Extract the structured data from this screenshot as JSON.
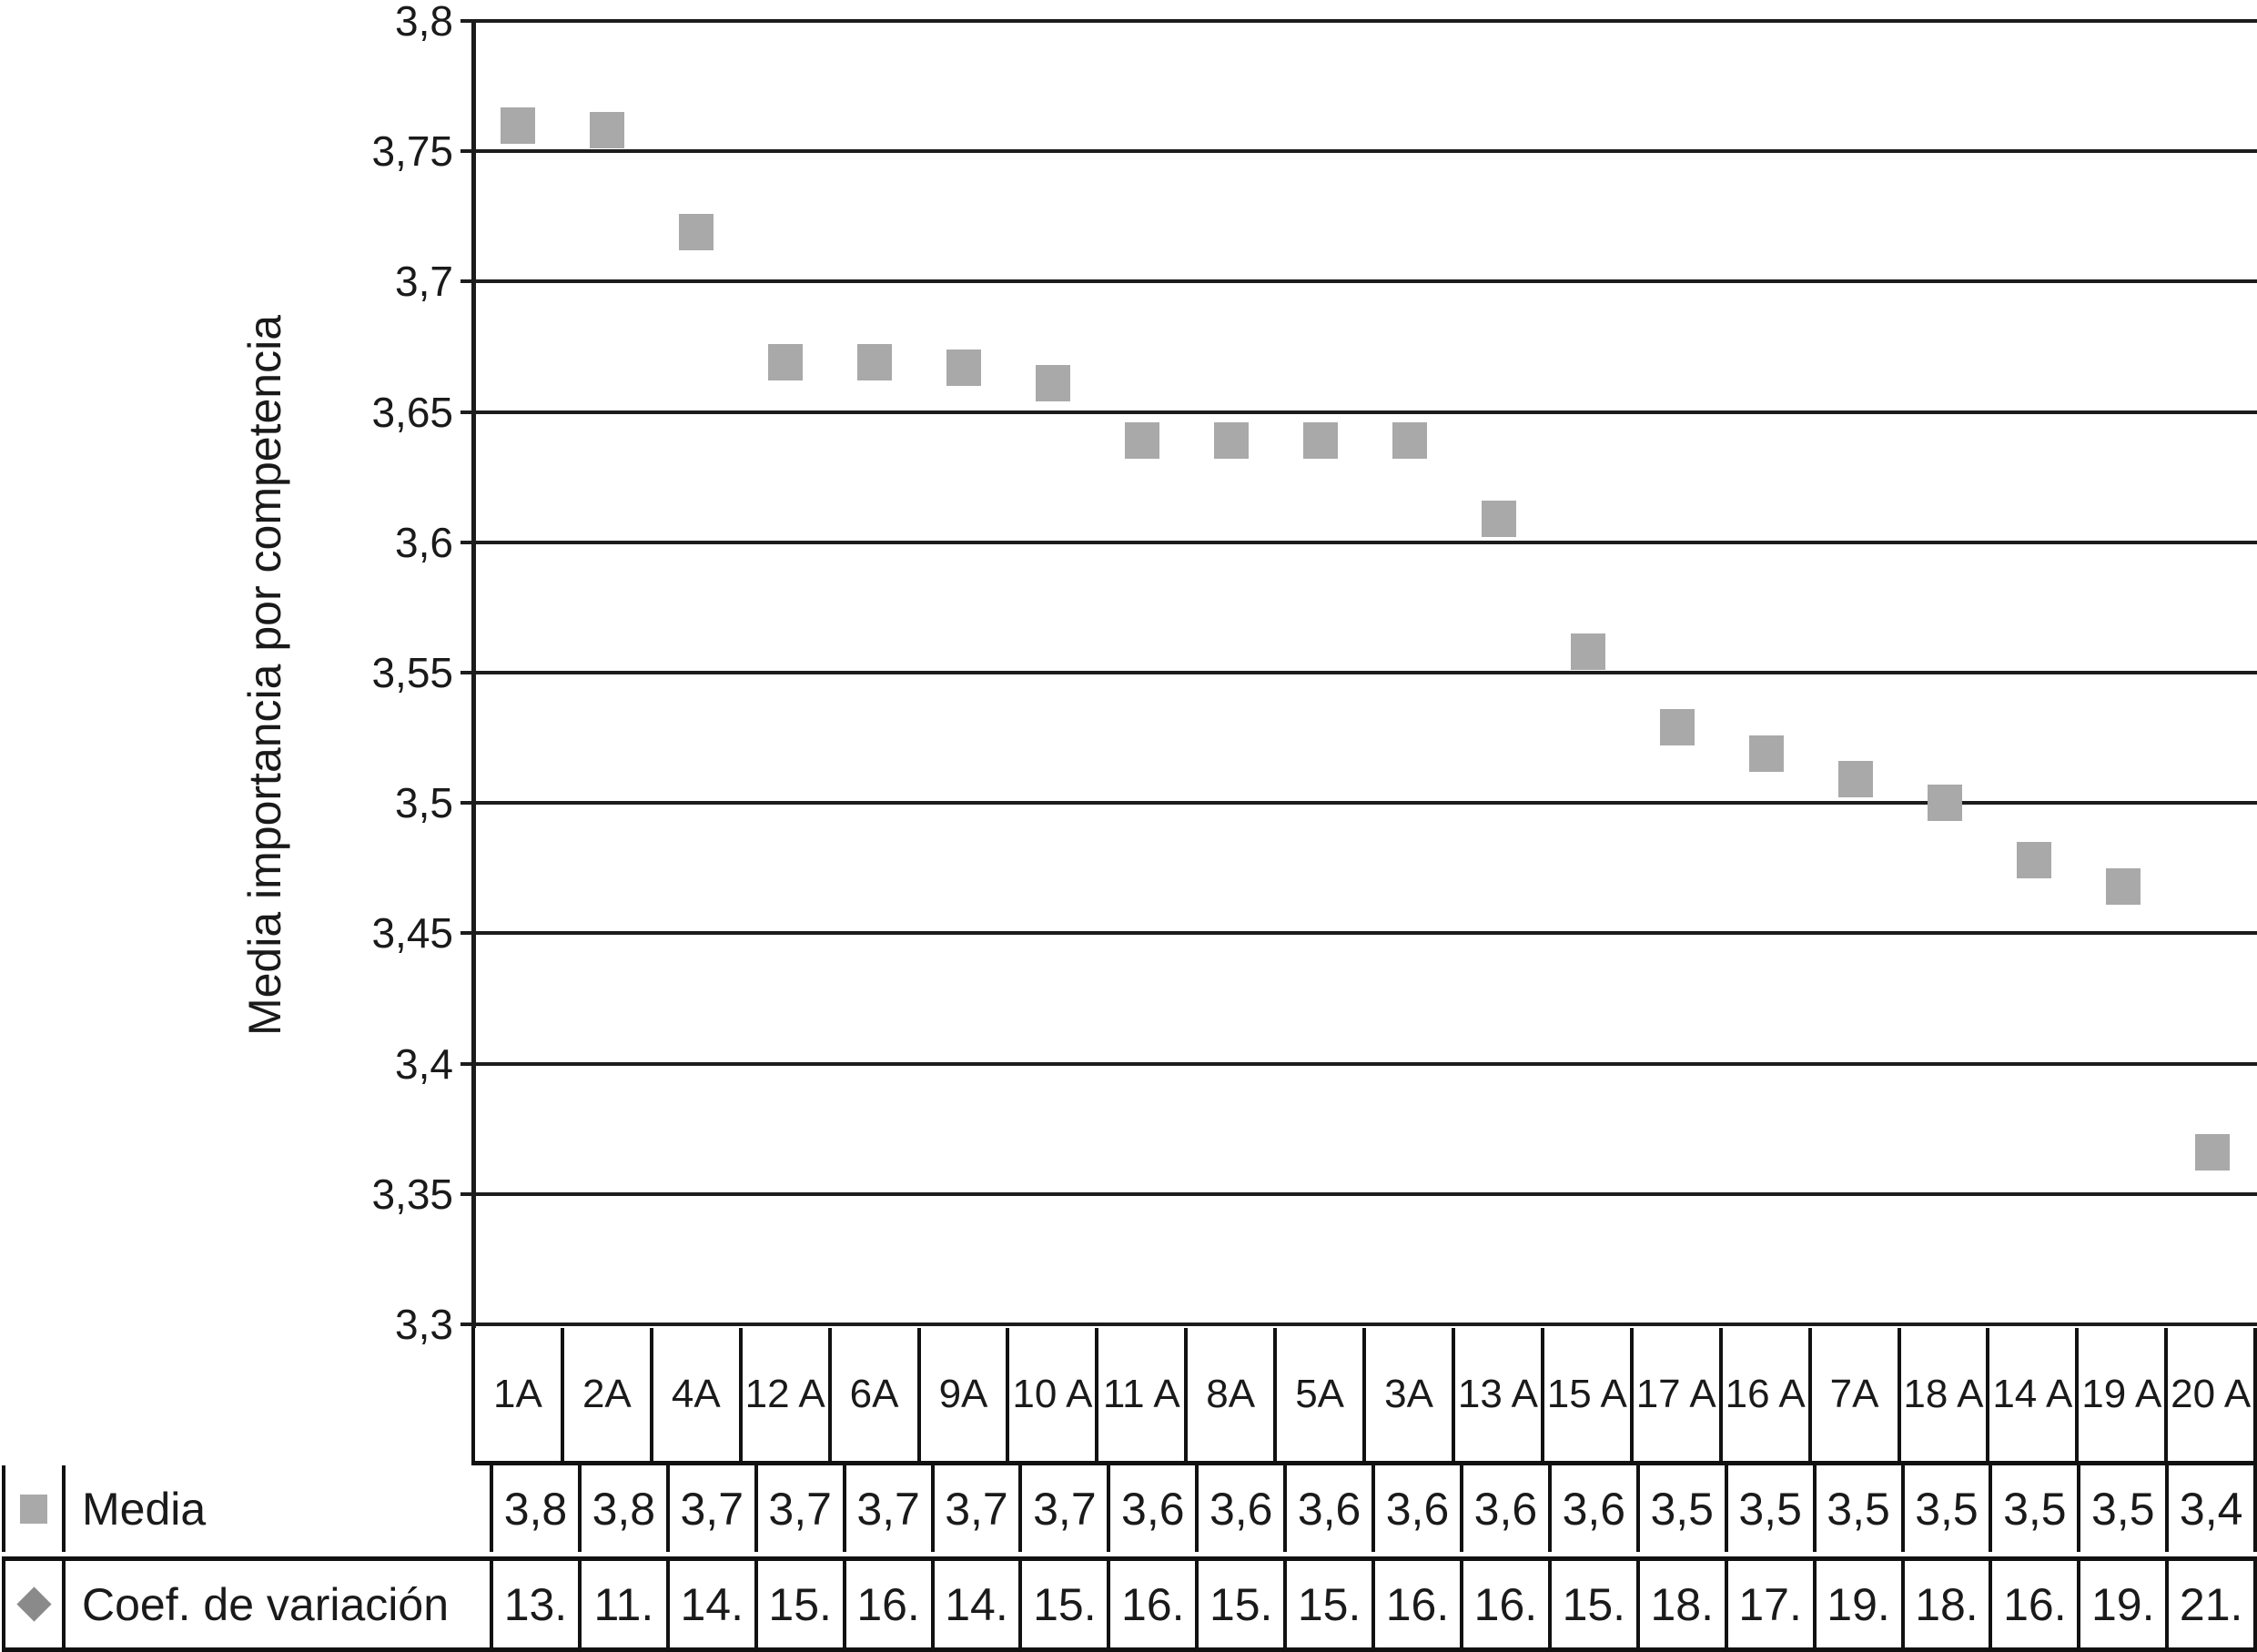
{
  "colors": {
    "background": "#ffffff",
    "grid_and_border": "#1c1c1c",
    "text": "#1a1a1a",
    "media_marker": "#a9a9a9",
    "coef_marker": "#8a8a8a"
  },
  "chart_data": {
    "type": "scatter",
    "title": "",
    "xlabel": "",
    "ylabel": "Media importancia por competencia",
    "ylim": [
      3.3,
      3.8
    ],
    "ytick_step": 0.05,
    "ytick_labels": [
      "3,8",
      "3,75",
      "3,7",
      "3,65",
      "3,6",
      "3,55",
      "3,5",
      "3,45",
      "3,4",
      "3,35",
      "3,3"
    ],
    "grid": true,
    "legend_position": "bottom-left-table",
    "categories": [
      "1A",
      "2A",
      "4A",
      "12 A",
      "6A",
      "9A",
      "10 A",
      "11 A",
      "8A",
      "5A",
      "3A",
      "13 A",
      "15 A",
      "17 A",
      "16 A",
      "7A",
      "18 A",
      "14 A",
      "19 A",
      "20 A"
    ],
    "series": [
      {
        "name": "Media",
        "marker": "square",
        "color": "#a9a9a9",
        "values": [
          3.76,
          3.758,
          3.719,
          3.669,
          3.669,
          3.667,
          3.661,
          3.639,
          3.639,
          3.639,
          3.639,
          3.609,
          3.558,
          3.529,
          3.519,
          3.509,
          3.5,
          3.478,
          3.468,
          3.366
        ]
      },
      {
        "name": "Coef. de variación",
        "marker": "diamond",
        "color": "#8a8a8a",
        "note_values_not_plotted_in_axis_range": true
      }
    ],
    "table": {
      "rows": [
        {
          "label": "Media",
          "icon": "square-marker-icon",
          "color": "#a9a9a9",
          "values": [
            "3,8",
            "3,8",
            "3,7",
            "3,7",
            "3,7",
            "3,7",
            "3,7",
            "3,6",
            "3,6",
            "3,6",
            "3,6",
            "3,6",
            "3,6",
            "3,5",
            "3,5",
            "3,5",
            "3,5",
            "3,5",
            "3,5",
            "3,4"
          ]
        },
        {
          "label": "Coef. de variación",
          "icon": "diamond-marker-icon",
          "color": "#8a8a8a",
          "values": [
            "13.",
            "11.",
            "14.",
            "15.",
            "16.",
            "14.",
            "15.",
            "16.",
            "15.",
            "15.",
            "16.",
            "16.",
            "15.",
            "18.",
            "17.",
            "19.",
            "18.",
            "16.",
            "19.",
            "21."
          ]
        }
      ]
    }
  }
}
